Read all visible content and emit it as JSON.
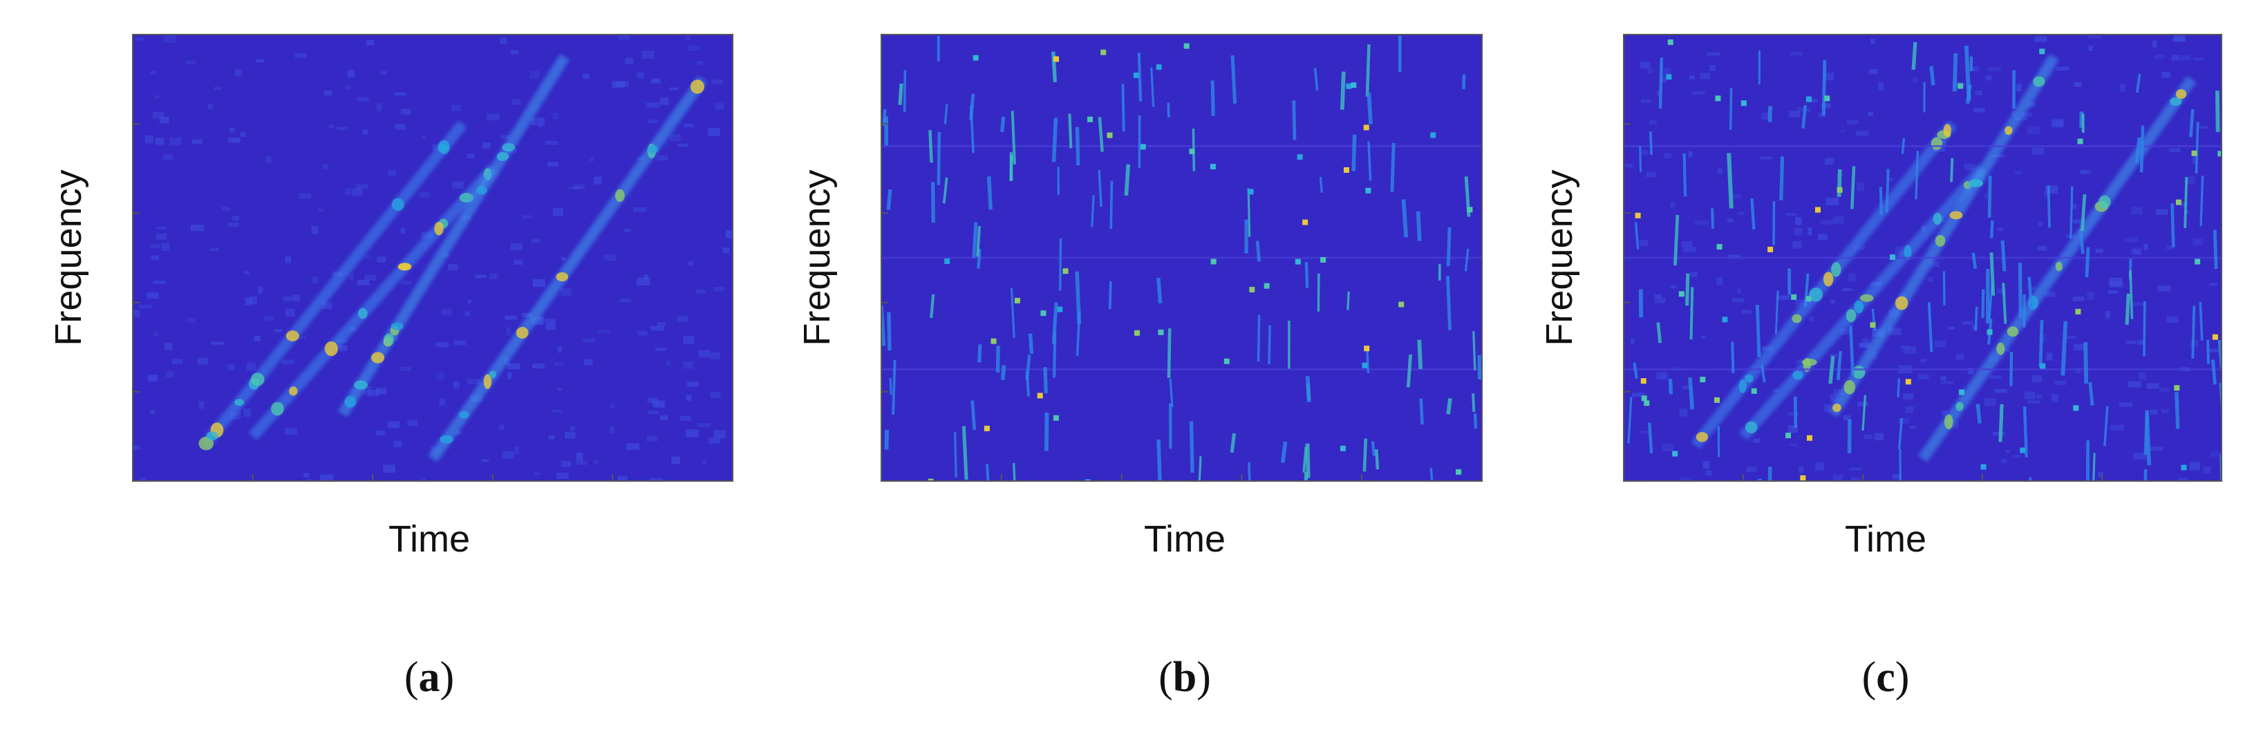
{
  "panels": [
    {
      "xlabel": "Time",
      "ylabel": "Frequency",
      "caption": {
        "open": "(",
        "letter": "a",
        "close": ")"
      }
    },
    {
      "xlabel": "Time",
      "ylabel": "Frequency",
      "caption": {
        "open": "(",
        "letter": "b",
        "close": ")"
      }
    },
    {
      "xlabel": "Time",
      "ylabel": "Frequency",
      "caption": {
        "open": "(",
        "letter": "c",
        "close": ")"
      }
    }
  ]
}
